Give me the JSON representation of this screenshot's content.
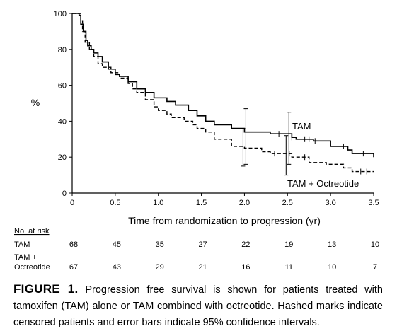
{
  "chart_data": {
    "type": "line",
    "subtype": "kaplan-meier",
    "ylabel": "%",
    "xlabel": "Time from randomization to progression (yr)",
    "xlim": [
      0,
      3.5
    ],
    "ylim": [
      0,
      100
    ],
    "x_ticks": [
      0,
      0.5,
      1.0,
      1.5,
      2.0,
      2.5,
      3.0,
      3.5
    ],
    "x_tick_labels": [
      "0",
      "0.5",
      "1.0",
      "1.5",
      "2.0",
      "2.5",
      "3.0",
      "3.5"
    ],
    "y_ticks": [
      0,
      20,
      40,
      60,
      80,
      100
    ],
    "y_tick_labels": [
      "0",
      "20",
      "40",
      "60",
      "80",
      "100"
    ],
    "grid": false,
    "series": [
      {
        "name": "TAM",
        "line_style": "solid",
        "steps": [
          [
            0,
            100
          ],
          [
            0.08,
            99
          ],
          [
            0.1,
            94
          ],
          [
            0.13,
            90
          ],
          [
            0.16,
            85
          ],
          [
            0.18,
            82
          ],
          [
            0.22,
            80
          ],
          [
            0.25,
            78
          ],
          [
            0.3,
            76
          ],
          [
            0.35,
            73
          ],
          [
            0.42,
            69
          ],
          [
            0.5,
            66
          ],
          [
            0.55,
            65
          ],
          [
            0.65,
            62
          ],
          [
            0.75,
            58
          ],
          [
            0.85,
            56
          ],
          [
            0.95,
            53
          ],
          [
            1.1,
            51
          ],
          [
            1.2,
            49
          ],
          [
            1.35,
            46
          ],
          [
            1.45,
            43
          ],
          [
            1.55,
            40
          ],
          [
            1.65,
            38
          ],
          [
            1.85,
            36
          ],
          [
            2.0,
            34
          ],
          [
            2.3,
            33
          ],
          [
            2.55,
            31
          ],
          [
            2.6,
            30
          ],
          [
            2.8,
            29
          ],
          [
            3.0,
            26
          ],
          [
            3.2,
            24
          ],
          [
            3.25,
            22
          ],
          [
            3.5,
            20
          ]
        ],
        "censored": [
          2.4,
          2.55,
          2.7,
          2.75,
          2.82,
          3.15,
          3.38
        ],
        "ci_bars": [
          {
            "x": 2.0,
            "estimate": 34,
            "low": 16,
            "high": 47
          },
          {
            "x": 2.5,
            "estimate": 31,
            "low": 16,
            "high": 45
          }
        ]
      },
      {
        "name": "TAM + Octreotide",
        "line_style": "dashed",
        "steps": [
          [
            0,
            100
          ],
          [
            0.1,
            96
          ],
          [
            0.12,
            90
          ],
          [
            0.15,
            84
          ],
          [
            0.2,
            80
          ],
          [
            0.25,
            76
          ],
          [
            0.3,
            72
          ],
          [
            0.35,
            70
          ],
          [
            0.45,
            67
          ],
          [
            0.55,
            64
          ],
          [
            0.65,
            61
          ],
          [
            0.7,
            58
          ],
          [
            0.75,
            56
          ],
          [
            0.85,
            52
          ],
          [
            0.95,
            48
          ],
          [
            1.0,
            46
          ],
          [
            1.1,
            44
          ],
          [
            1.15,
            42
          ],
          [
            1.3,
            40
          ],
          [
            1.4,
            38
          ],
          [
            1.45,
            36
          ],
          [
            1.55,
            34
          ],
          [
            1.65,
            30
          ],
          [
            1.85,
            26
          ],
          [
            2.0,
            25
          ],
          [
            2.2,
            23
          ],
          [
            2.3,
            22
          ],
          [
            2.55,
            20
          ],
          [
            2.75,
            17
          ],
          [
            2.95,
            16
          ],
          [
            3.15,
            14
          ],
          [
            3.25,
            12
          ],
          [
            3.5,
            12
          ]
        ],
        "censored": [
          2.35,
          2.52,
          2.7,
          3.35,
          3.42
        ],
        "ci_bars": [
          {
            "x": 2.0,
            "estimate": 25,
            "low": 15,
            "high": 36
          },
          {
            "x": 2.5,
            "estimate": 20,
            "low": 10,
            "high": 32
          }
        ]
      }
    ],
    "number_at_risk": {
      "heading": "No. at risk",
      "times": [
        0,
        0.5,
        1.0,
        1.5,
        2.0,
        2.5,
        3.0,
        3.5
      ],
      "rows": [
        {
          "label_lines": [
            "TAM"
          ],
          "values": [
            "68",
            "45",
            "35",
            "27",
            "22",
            "19",
            "13",
            "10"
          ]
        },
        {
          "label_lines": [
            "TAM +",
            "Octreotide"
          ],
          "values": [
            "67",
            "43",
            "29",
            "21",
            "16",
            "11",
            "10",
            "7"
          ]
        }
      ]
    }
  },
  "caption": {
    "label": "FIGURE 1.",
    "text": "Progression free survival is shown for patients treated with tamoxifen (TAM) alone or TAM combined with octreotide. Hashed marks indicate censored patients and error bars indicate 95% confidence intervals."
  }
}
